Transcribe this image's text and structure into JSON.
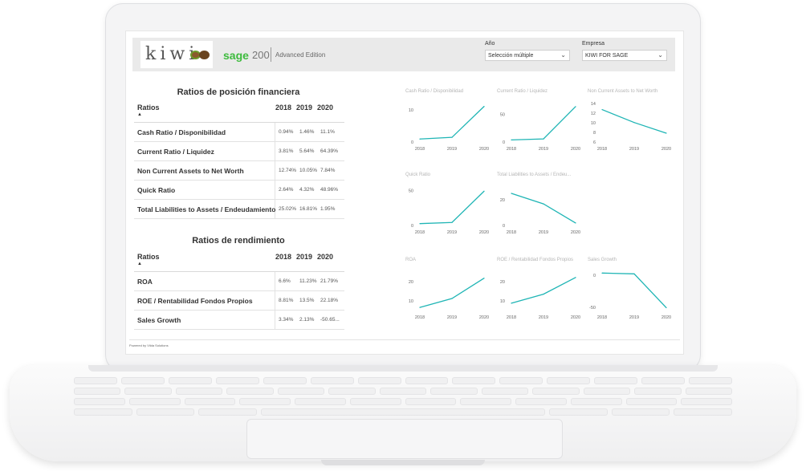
{
  "header": {
    "logo_text": "kiwi",
    "brand": "sage",
    "brand_version": "200",
    "edition": "Advanced Edition"
  },
  "filters": [
    {
      "label": "Año",
      "value": "Selección múltiple"
    },
    {
      "label": "Empresa",
      "value": "KIWI FOR SAGE"
    }
  ],
  "table_financial": {
    "title": "Ratios de posición financiera",
    "col_label": "Ratios",
    "years": [
      "2018",
      "2019",
      "2020"
    ],
    "rows": [
      {
        "name": "Cash Ratio / Disponibilidad",
        "values": [
          "0.94%",
          "1.46%",
          "11.1%"
        ]
      },
      {
        "name": "Current Ratio / Liquidez",
        "values": [
          "3.81%",
          "5.64%",
          "64.39%"
        ]
      },
      {
        "name": "Non Current Assets to Net Worth",
        "values": [
          "12.74%",
          "10.05%",
          "7.84%"
        ]
      },
      {
        "name": "Quick Ratio",
        "values": [
          "2.64%",
          "4.32%",
          "48.96%"
        ]
      },
      {
        "name": "Total Liabilities to Assets / Endeudamiento",
        "values": [
          "25.02%",
          "16.81%",
          "1.95%"
        ]
      }
    ]
  },
  "table_performance": {
    "title": "Ratios de rendimiento",
    "col_label": "Ratios",
    "years": [
      "2018",
      "2019",
      "2020"
    ],
    "rows": [
      {
        "name": "ROA",
        "values": [
          "6.6%",
          "11.23%",
          "21.79%"
        ]
      },
      {
        "name": "ROE / Rentabilidad Fondos Propios",
        "values": [
          "8.81%",
          "13.5%",
          "22.18%"
        ]
      },
      {
        "name": "Sales Growth",
        "values": [
          "3.34%",
          "2.13%",
          "-50.65..."
        ]
      }
    ]
  },
  "chart_data": [
    {
      "type": "line",
      "title": "Cash Ratio / Disponibilidad",
      "x": [
        "2018",
        "2019",
        "2020"
      ],
      "values": [
        0.94,
        1.46,
        11.1
      ],
      "ylim": [
        0,
        12
      ],
      "yticks": [
        "0",
        "10"
      ],
      "color": "#1fb5b5"
    },
    {
      "type": "line",
      "title": "Current Ratio / Liquidez",
      "x": [
        "2018",
        "2019",
        "2020"
      ],
      "values": [
        3.81,
        5.64,
        64.39
      ],
      "ylim": [
        0,
        70
      ],
      "yticks": [
        "0",
        "50"
      ],
      "color": "#1fb5b5"
    },
    {
      "type": "line",
      "title": "Non Current Assets to Net Worth",
      "x": [
        "2018",
        "2019",
        "2020"
      ],
      "values": [
        12.74,
        10.05,
        7.84
      ],
      "ylim": [
        6,
        14
      ],
      "yticks": [
        "6",
        "8",
        "10",
        "12",
        "14"
      ],
      "color": "#1fb5b5"
    },
    {
      "type": "line",
      "title": "Quick Ratio",
      "x": [
        "2018",
        "2019",
        "2020"
      ],
      "values": [
        2.64,
        4.32,
        48.96
      ],
      "ylim": [
        0,
        55
      ],
      "yticks": [
        "0",
        "50"
      ],
      "color": "#1fb5b5"
    },
    {
      "type": "line",
      "title": "Total Liabilities to Assets / Endeu...",
      "x": [
        "2018",
        "2019",
        "2020"
      ],
      "values": [
        25.02,
        16.81,
        1.95
      ],
      "ylim": [
        0,
        30
      ],
      "yticks": [
        "0",
        "20"
      ],
      "color": "#1fb5b5"
    },
    {
      "type": "line",
      "title": "ROA",
      "x": [
        "2018",
        "2019",
        "2020"
      ],
      "values": [
        6.6,
        11.23,
        21.79
      ],
      "ylim": [
        5,
        25
      ],
      "yticks": [
        "10",
        "20"
      ],
      "color": "#1fb5b5"
    },
    {
      "type": "line",
      "title": "ROE / Rentabilidad Fondos Propios",
      "x": [
        "2018",
        "2019",
        "2020"
      ],
      "values": [
        8.81,
        13.5,
        22.18
      ],
      "ylim": [
        5,
        25
      ],
      "yticks": [
        "10",
        "20"
      ],
      "color": "#1fb5b5"
    },
    {
      "type": "line",
      "title": "Sales Growth",
      "x": [
        "2018",
        "2019",
        "2020"
      ],
      "values": [
        3.34,
        2.13,
        -50.65
      ],
      "ylim": [
        -55,
        5
      ],
      "yticks": [
        "0",
        "-50"
      ],
      "color": "#1fb5b5"
    }
  ],
  "footer": {
    "text": "Powered by Vilda Solutions"
  }
}
